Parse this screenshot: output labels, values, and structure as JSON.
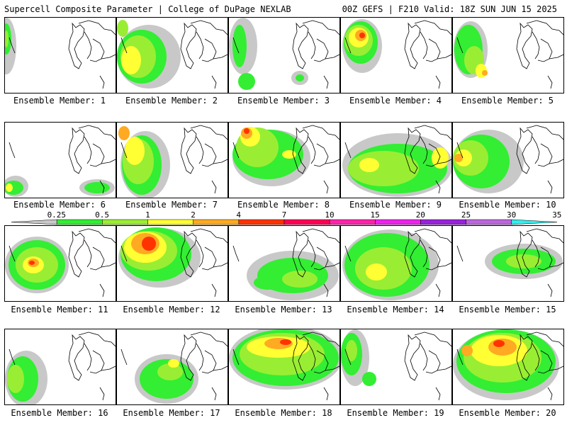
{
  "header": {
    "title_left": "Supercell Composite Parameter | College of DuPage NEXLAB",
    "title_right": "00Z GEFS | F210 Valid: 18Z SUN JUN 15 2025"
  },
  "colorbar": {
    "levels": [
      "0.25",
      "0.5",
      "1",
      "2",
      "4",
      "7",
      "10",
      "15",
      "20",
      "25",
      "30",
      "35"
    ],
    "colors": [
      "#c8c8c8",
      "#33ee33",
      "#99ee33",
      "#ffff33",
      "#ffaa22",
      "#ff3300",
      "#ff0055",
      "#ff22aa",
      "#ee22ee",
      "#9922dd",
      "#bb66dd",
      "#33eeee"
    ]
  },
  "members": [
    {
      "label": "Ensemble Member: 1",
      "blobs": [
        [
          2,
          40,
          14,
          40,
          0.25
        ],
        [
          2,
          30,
          7,
          22,
          0.5
        ],
        [
          2,
          30,
          3,
          12,
          1
        ]
      ]
    },
    {
      "label": "Ensemble Member: 2",
      "blobs": [
        [
          45,
          55,
          45,
          45,
          0.25
        ],
        [
          35,
          55,
          35,
          38,
          0.5
        ],
        [
          30,
          55,
          25,
          30,
          1
        ],
        [
          20,
          60,
          14,
          20,
          2
        ],
        [
          8,
          15,
          8,
          12,
          1
        ]
      ]
    },
    {
      "label": "Ensemble Member: 3",
      "blobs": [
        [
          20,
          40,
          20,
          40,
          0.25
        ],
        [
          15,
          40,
          10,
          30,
          0.5
        ],
        [
          25,
          90,
          12,
          12,
          0.5
        ],
        [
          100,
          85,
          12,
          10,
          0.25
        ],
        [
          100,
          85,
          6,
          5,
          0.5
        ]
      ]
    },
    {
      "label": "Ensemble Member: 4",
      "blobs": [
        [
          30,
          40,
          28,
          38,
          0.25
        ],
        [
          28,
          35,
          24,
          30,
          0.5
        ],
        [
          25,
          32,
          20,
          22,
          1
        ],
        [
          25,
          28,
          14,
          14,
          2
        ],
        [
          28,
          25,
          8,
          8,
          4
        ],
        [
          30,
          25,
          4,
          4,
          7
        ]
      ]
    },
    {
      "label": "Ensemble Member: 5",
      "blobs": [
        [
          25,
          45,
          24,
          40,
          0.25
        ],
        [
          22,
          45,
          20,
          35,
          0.5
        ],
        [
          30,
          60,
          14,
          20,
          1
        ],
        [
          40,
          75,
          8,
          10,
          2
        ],
        [
          45,
          78,
          4,
          4,
          4
        ]
      ]
    },
    {
      "label": "Ensemble Member: 6",
      "blobs": [
        [
          15,
          90,
          18,
          15,
          0.25
        ],
        [
          12,
          92,
          14,
          10,
          0.5
        ],
        [
          6,
          92,
          5,
          6,
          2
        ],
        [
          130,
          92,
          25,
          12,
          0.25
        ],
        [
          130,
          92,
          18,
          8,
          0.5
        ]
      ]
    },
    {
      "label": "Ensemble Member: 7",
      "blobs": [
        [
          40,
          60,
          35,
          48,
          0.25
        ],
        [
          35,
          60,
          28,
          42,
          0.5
        ],
        [
          30,
          55,
          22,
          32,
          1
        ],
        [
          25,
          40,
          14,
          20,
          2
        ],
        [
          10,
          15,
          8,
          10,
          4
        ]
      ]
    },
    {
      "label": "Ensemble Member: 8",
      "blobs": [
        [
          60,
          50,
          55,
          40,
          0.25
        ],
        [
          55,
          45,
          50,
          35,
          0.5
        ],
        [
          40,
          35,
          30,
          28,
          1
        ],
        [
          30,
          20,
          14,
          14,
          2
        ],
        [
          25,
          15,
          8,
          8,
          4
        ],
        [
          25,
          12,
          4,
          4,
          7
        ],
        [
          85,
          45,
          10,
          6,
          2
        ]
      ]
    },
    {
      "label": "Ensemble Member: 9",
      "blobs": [
        [
          80,
          60,
          78,
          45,
          0.25
        ],
        [
          80,
          65,
          70,
          35,
          0.5
        ],
        [
          60,
          65,
          50,
          25,
          1
        ],
        [
          40,
          60,
          14,
          10,
          2
        ],
        [
          140,
          50,
          12,
          15,
          2
        ]
      ]
    },
    {
      "label": "Ensemble Member: 10",
      "blobs": [
        [
          50,
          55,
          50,
          45,
          0.25
        ],
        [
          40,
          55,
          40,
          38,
          0.5
        ],
        [
          25,
          50,
          25,
          25,
          1
        ],
        [
          15,
          50,
          12,
          12,
          2
        ],
        [
          8,
          50,
          6,
          6,
          4
        ]
      ]
    },
    {
      "label": "Ensemble Member: 11",
      "blobs": [
        [
          45,
          55,
          45,
          40,
          0.25
        ],
        [
          45,
          55,
          40,
          35,
          0.5
        ],
        [
          45,
          55,
          30,
          25,
          1
        ],
        [
          40,
          55,
          15,
          12,
          2
        ],
        [
          40,
          52,
          8,
          6,
          4
        ],
        [
          38,
          52,
          4,
          3,
          7
        ]
      ]
    },
    {
      "label": "Ensemble Member: 12",
      "blobs": [
        [
          60,
          45,
          58,
          42,
          0.25
        ],
        [
          55,
          40,
          50,
          38,
          0.5
        ],
        [
          45,
          35,
          40,
          28,
          1
        ],
        [
          40,
          30,
          30,
          22,
          2
        ],
        [
          40,
          25,
          20,
          15,
          4
        ],
        [
          45,
          25,
          10,
          10,
          7
        ]
      ]
    },
    {
      "label": "Ensemble Member: 13",
      "blobs": [
        [
          90,
          70,
          65,
          35,
          0.25
        ],
        [
          90,
          70,
          50,
          25,
          0.5
        ],
        [
          100,
          75,
          25,
          12,
          1
        ],
        [
          55,
          80,
          20,
          10,
          0.5
        ]
      ]
    },
    {
      "label": "Ensemble Member: 14",
      "blobs": [
        [
          70,
          55,
          68,
          50,
          0.25
        ],
        [
          65,
          55,
          60,
          45,
          0.5
        ],
        [
          60,
          60,
          40,
          30,
          1
        ],
        [
          50,
          65,
          15,
          12,
          2
        ]
      ]
    },
    {
      "label": "Ensemble Member: 15",
      "blobs": [
        [
          100,
          50,
          55,
          25,
          0.25
        ],
        [
          100,
          50,
          45,
          18,
          0.5
        ],
        [
          100,
          50,
          25,
          10,
          1
        ]
      ]
    },
    {
      "label": "Ensemble Member: 16",
      "blobs": [
        [
          30,
          70,
          30,
          40,
          0.25
        ],
        [
          25,
          70,
          22,
          32,
          0.5
        ],
        [
          15,
          70,
          12,
          20,
          1
        ]
      ]
    },
    {
      "label": "Ensemble Member: 17",
      "blobs": [
        [
          70,
          70,
          45,
          35,
          0.25
        ],
        [
          70,
          70,
          38,
          28,
          0.5
        ],
        [
          75,
          60,
          18,
          12,
          1
        ],
        [
          80,
          48,
          8,
          6,
          2
        ]
      ]
    },
    {
      "label": "Ensemble Member: 18",
      "blobs": [
        [
          80,
          40,
          80,
          45,
          0.25
        ],
        [
          80,
          40,
          75,
          40,
          0.5
        ],
        [
          75,
          35,
          60,
          30,
          1
        ],
        [
          70,
          25,
          45,
          15,
          2
        ],
        [
          70,
          20,
          20,
          8,
          4
        ],
        [
          80,
          18,
          8,
          4,
          7
        ]
      ]
    },
    {
      "label": "Ensemble Member: 19",
      "blobs": [
        [
          20,
          40,
          20,
          40,
          0.25
        ],
        [
          15,
          35,
          15,
          30,
          0.5
        ],
        [
          15,
          30,
          8,
          15,
          1
        ],
        [
          40,
          70,
          10,
          10,
          0.5
        ]
      ]
    },
    {
      "label": "Ensemble Member: 20",
      "blobs": [
        [
          75,
          50,
          75,
          50,
          0.25
        ],
        [
          75,
          45,
          70,
          45,
          0.5
        ],
        [
          70,
          40,
          55,
          35,
          1
        ],
        [
          65,
          30,
          40,
          22,
          2
        ],
        [
          70,
          25,
          20,
          12,
          4
        ],
        [
          65,
          20,
          8,
          5,
          7
        ],
        [
          20,
          30,
          8,
          8,
          4
        ]
      ]
    }
  ]
}
